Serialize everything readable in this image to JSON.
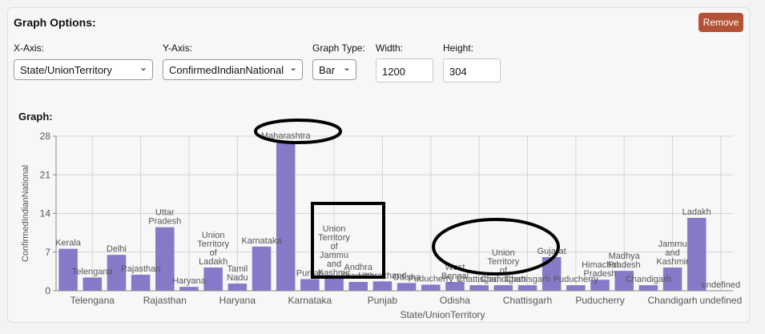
{
  "panel": {
    "title": "Graph Options:",
    "remove_label": "Remove"
  },
  "controls": {
    "x_axis": {
      "label": "X-Axis:",
      "value": "State/UnionTerritory"
    },
    "y_axis": {
      "label": "Y-Axis:",
      "value": "ConfirmedIndianNational"
    },
    "graph_type": {
      "label": "Graph Type:",
      "value": "Bar"
    },
    "width": {
      "label": "Width:",
      "value": "1200"
    },
    "height": {
      "label": "Height:",
      "value": "304"
    }
  },
  "graph_label": "Graph:",
  "chart_data": {
    "type": "bar",
    "ylabel": "ConfirmedIndianNational",
    "xlabel": "State/UnionTerritory",
    "ylim": [
      0,
      28
    ],
    "yticks": [
      0,
      7,
      14,
      21,
      28
    ],
    "grid": true,
    "color": "#8878c8",
    "categories": [
      "Kerala",
      "Telengana",
      "Delhi",
      "Rajasthan",
      "Uttar Pradesh",
      "Haryana",
      "Union Territory of Ladakh",
      "Tamil Nadu",
      "Karnataka",
      "Maharashtra",
      "Punjab",
      "Union Territory of Jammu and Kashmir",
      "Andhra Pradesh",
      "Uttarakhand",
      "Odisha",
      "Puducherry",
      "West Bengal",
      "Chattisgarh",
      "Union Territory of Chandigarh",
      "Chattisgarh",
      "Gujarat",
      "Puducherry",
      "Himachal Pradesh",
      "Madhya Pradesh",
      "Chandigarh",
      "Jammu and Kashmir",
      "Ladakh",
      "undefined"
    ],
    "values": [
      7.6,
      2.4,
      6.5,
      2.9,
      11.5,
      0.7,
      4.2,
      1.3,
      8.0,
      27.0,
      2.1,
      2.2,
      1.6,
      1.7,
      1.4,
      1.1,
      1.6,
      1.0,
      1.0,
      1.0,
      6.1,
      1.0,
      2.0,
      3.6,
      1.0,
      4.2,
      13.2,
      0
    ],
    "x_tick_labels": [
      "Telengana",
      "Rajasthan",
      "Haryana",
      "Karnataka",
      "Punjab",
      "Odisha",
      "Chattisgarh",
      "Puducherry",
      "Chandigarh",
      "undefined"
    ]
  }
}
